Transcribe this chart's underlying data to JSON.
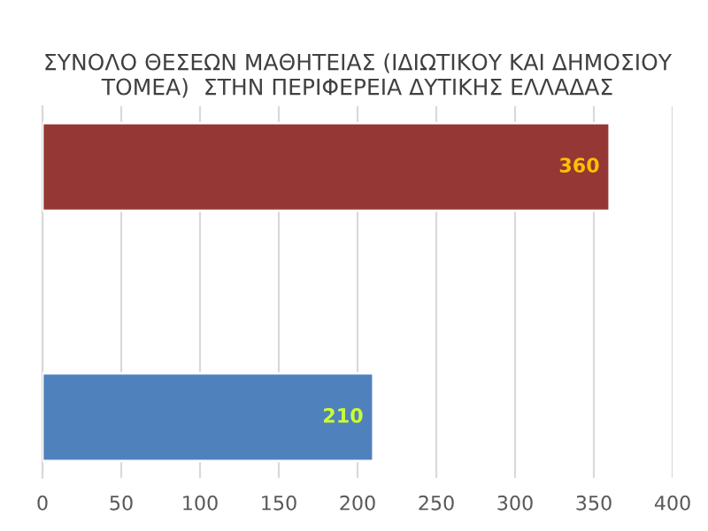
{
  "chart_data": {
    "type": "bar",
    "orientation": "horizontal",
    "title": "ΣΥΝΟΛΟ ΘΕΣΕΩΝ ΜΑΘΗΤΕΙΑΣ (ΙΔΙΩΤΙΚΟΥ ΚΑΙ ΔΗΜΟΣΙΟΥ ΤΟΜΕΑ)  ΣΤΗΝ ΠΕΡΙΦΕΡΕΙΑ ΔΥΤΙΚΗΣ ΕΛΛΑΔΑΣ",
    "categories": [
      null,
      null
    ],
    "values": [
      360,
      210
    ],
    "colors": [
      "#953735",
      "#4f81bd"
    ],
    "data_labels": true,
    "xlim": [
      0,
      400
    ],
    "xticks": [
      0,
      50,
      100,
      150,
      200,
      250,
      300,
      350,
      400
    ],
    "grid": "x",
    "legend": false
  }
}
